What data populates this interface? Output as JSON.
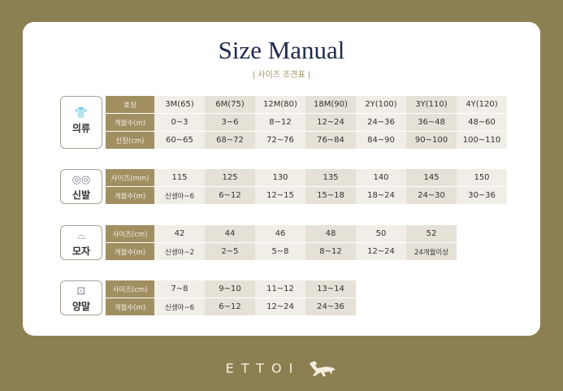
{
  "title": "Size Manual",
  "subtitle": "| 사이즈 조견표 |",
  "brand": "ETTOI",
  "groups": [
    {
      "name": "의류",
      "icon": "bodysuit-icon",
      "glyph": "👕",
      "rows": [
        {
          "label": "호칭",
          "values": [
            "3M(65)",
            "6M(75)",
            "12M(80)",
            "18M(90)",
            "2Y(100)",
            "3Y(110)",
            "4Y(120)"
          ]
        },
        {
          "label": "개월수(m)",
          "values": [
            "0~3",
            "3~6",
            "8~12",
            "12~24",
            "24~36",
            "36~48",
            "48~60"
          ]
        },
        {
          "label": "신장(cm)",
          "values": [
            "60~65",
            "68~72",
            "72~76",
            "76~84",
            "84~90",
            "90~100",
            "100~110"
          ]
        }
      ]
    },
    {
      "name": "신발",
      "icon": "shoes-icon",
      "glyph": "◎◎",
      "rows": [
        {
          "label": "사이즈(mm)",
          "values": [
            "115",
            "125",
            "130",
            "135",
            "140",
            "145",
            "150"
          ]
        },
        {
          "label": "개월수(m)",
          "values": [
            "신생아~6",
            "6~12",
            "12~15",
            "15~18",
            "18~24",
            "24~30",
            "30~36"
          ]
        }
      ]
    },
    {
      "name": "모자",
      "icon": "cap-icon",
      "glyph": "⌓",
      "rows": [
        {
          "label": "사이즈(cm)",
          "values": [
            "42",
            "44",
            "46",
            "48",
            "50",
            "52"
          ]
        },
        {
          "label": "개월수(m)",
          "values": [
            "신생아~2",
            "2~5",
            "5~8",
            "8~12",
            "12~24",
            "24개월이상"
          ]
        }
      ]
    },
    {
      "name": "양말",
      "icon": "socks-icon",
      "glyph": "⊡",
      "rows": [
        {
          "label": "사이즈(cm)",
          "values": [
            "7~8",
            "9~10",
            "11~12",
            "13~14"
          ]
        },
        {
          "label": "개월수(m)",
          "values": [
            "신생아~6",
            "6~12",
            "12~24",
            "24~36"
          ]
        }
      ]
    }
  ]
}
